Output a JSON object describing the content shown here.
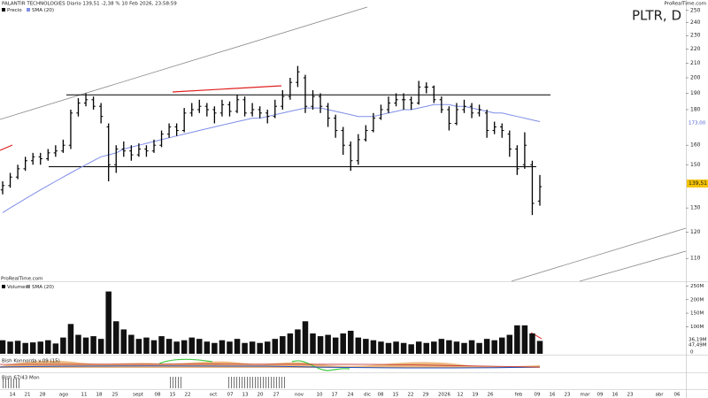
{
  "chart_data": {
    "type": "ohlc",
    "title": "PLTR, D",
    "subtitle": "PALANTIR TECHNOLOGIES Diario 139,51 -2,38 % 10 Feb 2026, 23:58:59",
    "watermark": "ProRealTime.com",
    "log_scale": true,
    "ylim": [
      102,
      258
    ],
    "yticks": [
      110,
      120,
      130,
      150,
      160,
      180,
      190,
      200,
      210,
      220,
      230,
      240,
      250
    ],
    "price_label": "139,51",
    "sma_label": "173,00",
    "levels": [
      189,
      149
    ],
    "x_labels": [
      "14",
      "21",
      "28",
      "ago",
      "11",
      "18",
      "25",
      "sept",
      "08",
      "15",
      "22",
      "oct",
      "07",
      "13",
      "20",
      "27",
      "nov",
      "10",
      "17",
      "24",
      "dic",
      "08",
      "15",
      "22",
      "29",
      "2026",
      "12",
      "19",
      "26",
      "feb",
      "09",
      "16",
      "23",
      "mar",
      "09",
      "16",
      "23",
      "abr",
      "06"
    ],
    "price": {
      "name": "Precio",
      "color": "#000000",
      "ohlc": [
        [
          138,
          142,
          136,
          140
        ],
        [
          140,
          146,
          139,
          144
        ],
        [
          144,
          150,
          143,
          148
        ],
        [
          148,
          154,
          147,
          152
        ],
        [
          152,
          156,
          150,
          154
        ],
        [
          154,
          156,
          150,
          153
        ],
        [
          153,
          158,
          152,
          156
        ],
        [
          156,
          160,
          154,
          157
        ],
        [
          157,
          163,
          156,
          160
        ],
        [
          160,
          180,
          158,
          178
        ],
        [
          178,
          187,
          176,
          184
        ],
        [
          184,
          190,
          182,
          186
        ],
        [
          186,
          188,
          180,
          182
        ],
        [
          182,
          184,
          172,
          176
        ],
        [
          170,
          172,
          142,
          150
        ],
        [
          150,
          160,
          146,
          158
        ],
        [
          158,
          162,
          154,
          157
        ],
        [
          157,
          160,
          152,
          155
        ],
        [
          155,
          161,
          154,
          158
        ],
        [
          158,
          160,
          154,
          157
        ],
        [
          157,
          163,
          156,
          160
        ],
        [
          160,
          168,
          159,
          166
        ],
        [
          166,
          172,
          164,
          170
        ],
        [
          170,
          172,
          165,
          168
        ],
        [
          168,
          181,
          167,
          178
        ],
        [
          178,
          184,
          176,
          180
        ],
        [
          180,
          186,
          178,
          182
        ],
        [
          182,
          184,
          176,
          180
        ],
        [
          180,
          182,
          172,
          178
        ],
        [
          178,
          186,
          176,
          183
        ],
        [
          183,
          185,
          176,
          179
        ],
        [
          179,
          189,
          178,
          186
        ],
        [
          186,
          188,
          176,
          178
        ],
        [
          178,
          184,
          176,
          180
        ],
        [
          180,
          182,
          175,
          178
        ],
        [
          178,
          180,
          172,
          176
        ],
        [
          176,
          186,
          175,
          182
        ],
        [
          182,
          192,
          180,
          188
        ],
        [
          188,
          200,
          186,
          197
        ],
        [
          197,
          208,
          194,
          204
        ],
        [
          200,
          202,
          178,
          182
        ],
        [
          182,
          192,
          180,
          188
        ],
        [
          188,
          190,
          178,
          182
        ],
        [
          182,
          184,
          170,
          175
        ],
        [
          175,
          177,
          164,
          168
        ],
        [
          168,
          170,
          155,
          160
        ],
        [
          160,
          162,
          147,
          152
        ],
        [
          152,
          166,
          150,
          163
        ],
        [
          163,
          171,
          162,
          168
        ],
        [
          168,
          178,
          167,
          175
        ],
        [
          175,
          183,
          174,
          180
        ],
        [
          180,
          188,
          178,
          184
        ],
        [
          184,
          190,
          182,
          186
        ],
        [
          186,
          190,
          180,
          186
        ],
        [
          186,
          188,
          180,
          184
        ],
        [
          184,
          198,
          183,
          194
        ],
        [
          194,
          197,
          190,
          194
        ],
        [
          194,
          195,
          184,
          186
        ],
        [
          186,
          188,
          178,
          180
        ],
        [
          180,
          182,
          168,
          172
        ],
        [
          172,
          184,
          171,
          180
        ],
        [
          180,
          186,
          178,
          182
        ],
        [
          182,
          184,
          175,
          178
        ],
        [
          178,
          183,
          176,
          180
        ],
        [
          178,
          180,
          164,
          168
        ],
        [
          168,
          173,
          166,
          170
        ],
        [
          170,
          172,
          164,
          168
        ],
        [
          166,
          168,
          154,
          158
        ],
        [
          158,
          160,
          145,
          148
        ],
        [
          150,
          167,
          148,
          160
        ],
        [
          150,
          152,
          127,
          132
        ],
        [
          133,
          145,
          131,
          139.51
        ]
      ]
    },
    "sma": {
      "name": "SMA (20)",
      "color": "#7f8ee8",
      "values": [
        128,
        130,
        132,
        134,
        136,
        138,
        140,
        142,
        144,
        146,
        148,
        150,
        152,
        154,
        155,
        156,
        158,
        159,
        160,
        161,
        162,
        163,
        164,
        165,
        166,
        167,
        168,
        169,
        170,
        171,
        172,
        173,
        174,
        175,
        175,
        176,
        177,
        178,
        179,
        180,
        181,
        181,
        181,
        180,
        179,
        178,
        177,
        176,
        176,
        176,
        177,
        178,
        179,
        180,
        180,
        181,
        182,
        183,
        183,
        183,
        182,
        182,
        181,
        180,
        179,
        178,
        178,
        177,
        176,
        175,
        174,
        173
      ]
    },
    "volume": {
      "name": "Volumen",
      "sma_name": "SMA (20)",
      "color": "#111111",
      "ylim": [
        0,
        258
      ],
      "yticks": [
        {
          "value": 100,
          "label": "100M"
        },
        {
          "value": 150,
          "label": "150M"
        },
        {
          "value": 200,
          "label": "200M"
        },
        {
          "value": 250,
          "label": "250M"
        }
      ],
      "zero_label": "0",
      "sma_label": "36,19M",
      "last_label": "47,49M",
      "values": [
        50,
        45,
        48,
        40,
        42,
        45,
        50,
        38,
        60,
        110,
        70,
        60,
        65,
        55,
        230,
        120,
        90,
        70,
        55,
        60,
        50,
        65,
        55,
        45,
        50,
        60,
        55,
        45,
        40,
        50,
        45,
        55,
        40,
        45,
        40,
        45,
        55,
        65,
        75,
        90,
        120,
        75,
        65,
        70,
        60,
        75,
        85,
        60,
        55,
        50,
        45,
        40,
        45,
        40,
        35,
        45,
        40,
        45,
        55,
        50,
        45,
        40,
        50,
        40,
        55,
        50,
        60,
        70,
        105,
        105,
        75,
        47.49
      ]
    },
    "indicator_labels": [
      "Bish Konnorda v.09 (15)",
      "Bish 67/43 Mon"
    ]
  }
}
